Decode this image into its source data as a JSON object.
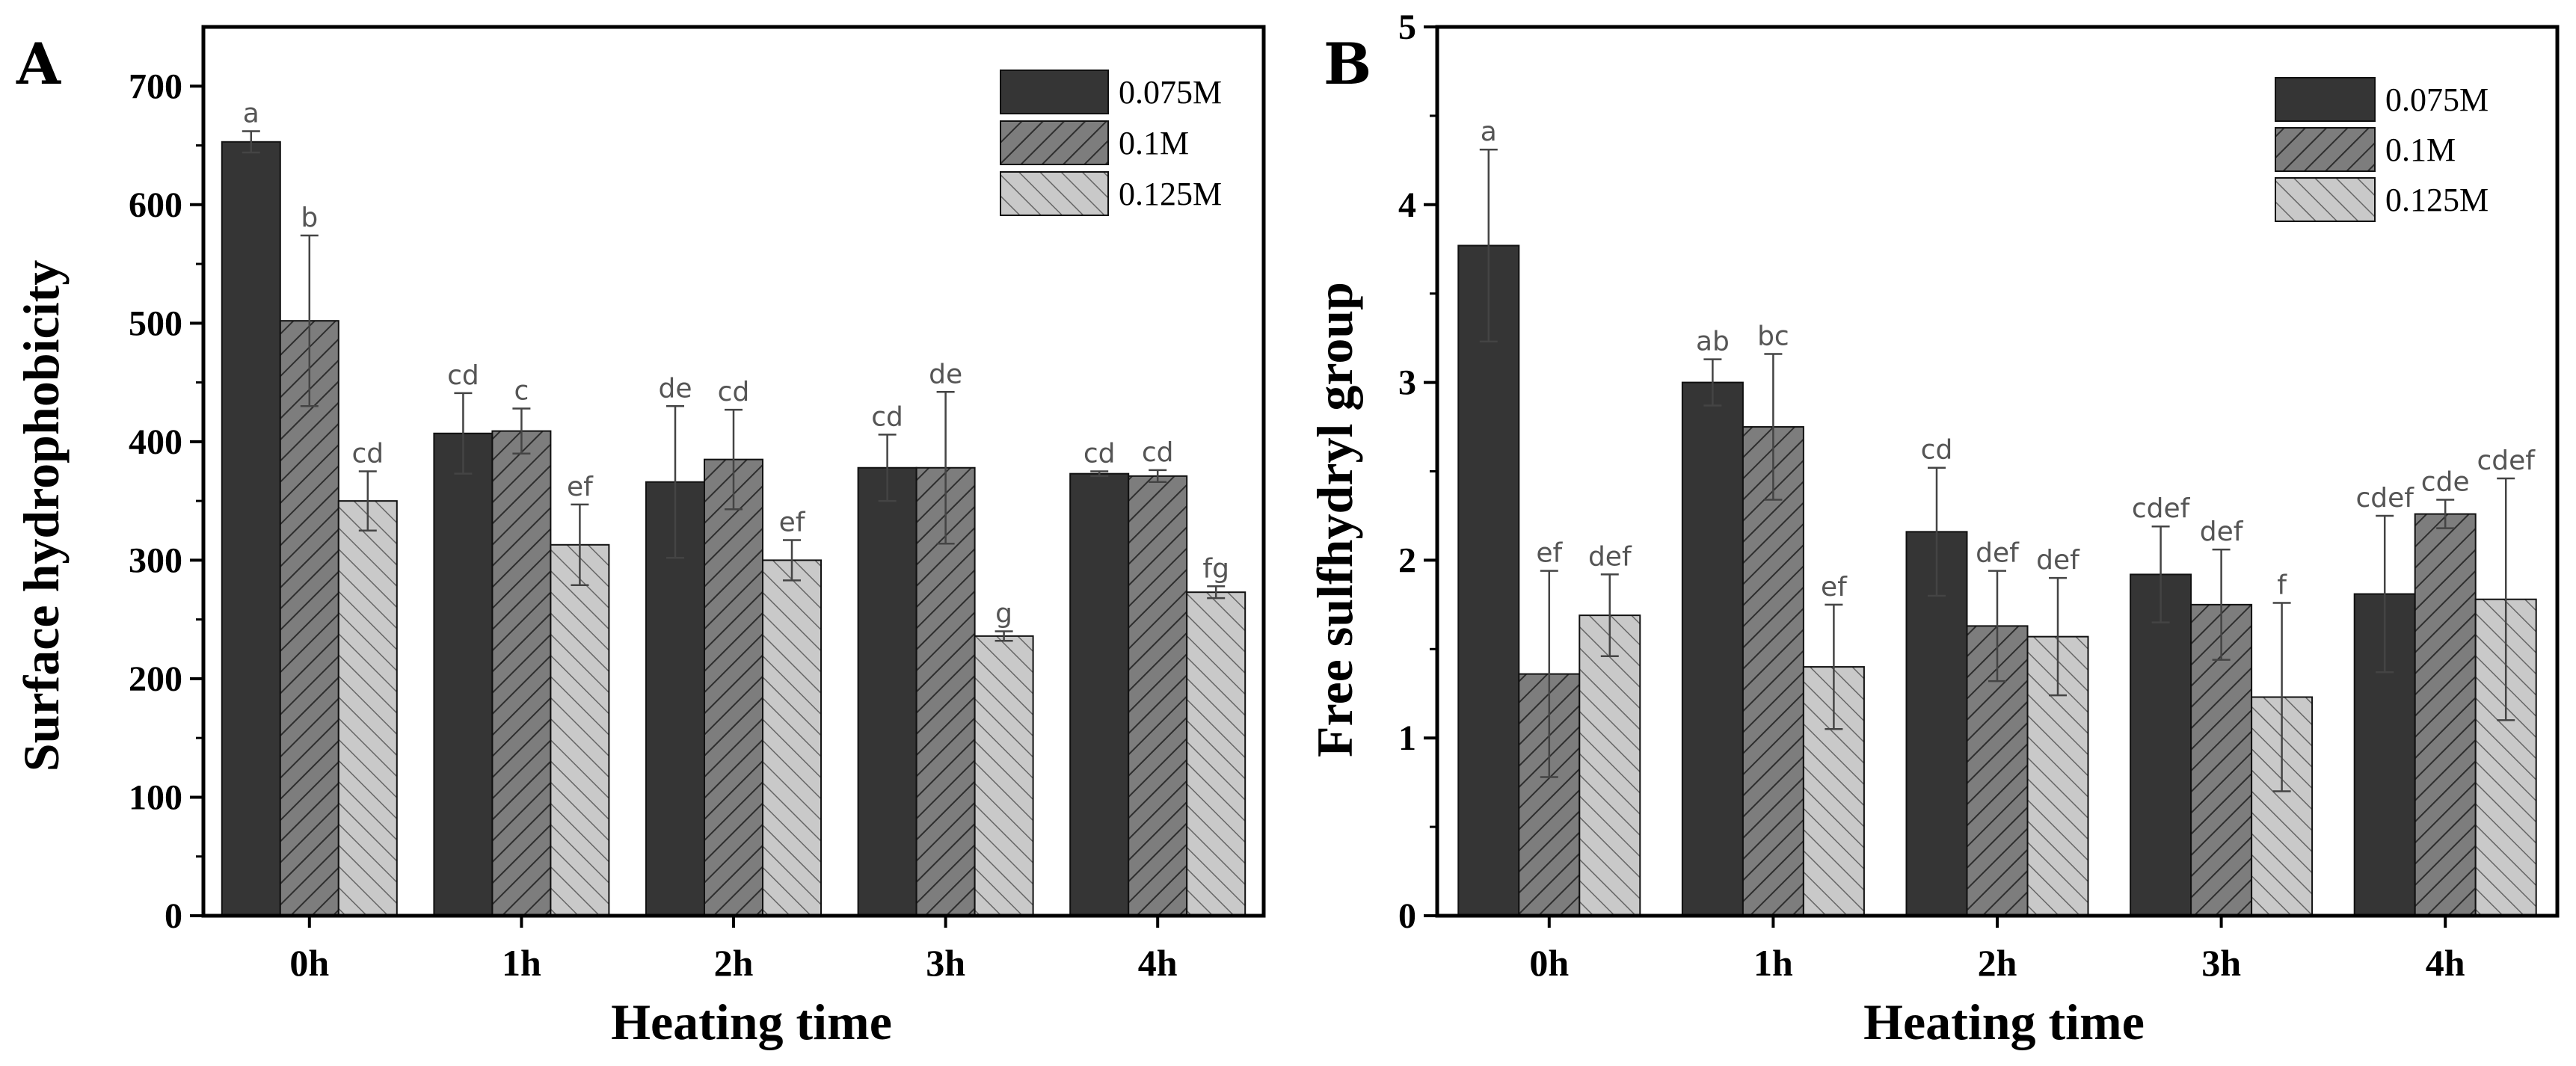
{
  "chart_data": [
    {
      "panel": "A",
      "type": "bar",
      "xlabel": "Heating time",
      "ylabel": "Surface hydrophobicity",
      "ylim": [
        0,
        750
      ],
      "yticks": [
        0,
        100,
        200,
        300,
        400,
        500,
        600,
        700
      ],
      "tick_labels": [
        "0",
        "100",
        "200",
        "300",
        "400",
        "500",
        "600",
        "700"
      ],
      "categories": [
        "0h",
        "1h",
        "2h",
        "3h",
        "4h"
      ],
      "legend_position": "top-right",
      "series": [
        {
          "name": "0.075M",
          "values": [
            653,
            407,
            366,
            378,
            373
          ],
          "errors": [
            9,
            34,
            64,
            28,
            2
          ],
          "labels": [
            "a",
            "cd",
            "de",
            "cd",
            "cd"
          ]
        },
        {
          "name": "0.1M",
          "values": [
            502,
            409,
            385,
            378,
            371
          ],
          "errors": [
            72,
            19,
            42,
            64,
            5
          ],
          "labels": [
            "b",
            "c",
            "cd",
            "de",
            "cd"
          ]
        },
        {
          "name": "0.125M",
          "values": [
            350,
            313,
            300,
            236,
            273
          ],
          "errors": [
            25,
            34,
            17,
            4,
            5
          ],
          "labels": [
            "cd",
            "ef",
            "ef",
            "g",
            "fg"
          ]
        }
      ]
    },
    {
      "panel": "B",
      "type": "bar",
      "xlabel": "Heating time",
      "ylabel": "Free sulfhydryl group",
      "ylim": [
        0,
        5
      ],
      "yticks": [
        0,
        1,
        2,
        3,
        4,
        5
      ],
      "tick_labels": [
        "0",
        "1",
        "2",
        "3",
        "4",
        "5"
      ],
      "categories": [
        "0h",
        "1h",
        "2h",
        "3h",
        "4h"
      ],
      "legend_position": "top-right",
      "series": [
        {
          "name": "0.075M",
          "values": [
            3.77,
            3.0,
            2.16,
            1.92,
            1.81
          ],
          "errors": [
            0.54,
            0.13,
            0.36,
            0.27,
            0.44
          ],
          "labels": [
            "a",
            "ab",
            "cd",
            "cdef",
            "cdef"
          ]
        },
        {
          "name": "0.1M",
          "values": [
            1.36,
            2.75,
            1.63,
            1.75,
            2.26
          ],
          "errors": [
            0.58,
            0.41,
            0.31,
            0.31,
            0.08
          ],
          "labels": [
            "ef",
            "bc",
            "def",
            "def",
            "cde"
          ]
        },
        {
          "name": "0.125M",
          "values": [
            1.69,
            1.4,
            1.57,
            1.23,
            1.78
          ],
          "errors": [
            0.23,
            0.35,
            0.33,
            0.53,
            0.68
          ],
          "labels": [
            "def",
            "ef",
            "def",
            "f",
            "cdef"
          ]
        }
      ]
    }
  ]
}
